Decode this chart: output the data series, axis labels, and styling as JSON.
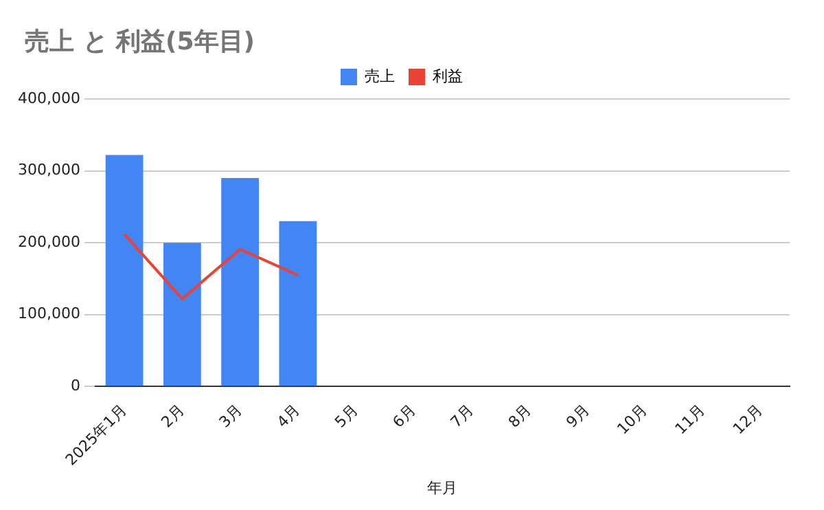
{
  "chart_data": {
    "type": "bar",
    "title": "売上 と 利益(5年目)",
    "xlabel": "年月",
    "categories": [
      "2025年1月",
      "2月",
      "3月",
      "4月",
      "5月",
      "6月",
      "7月",
      "8月",
      "9月",
      "10月",
      "11月",
      "12月"
    ],
    "series": [
      {
        "name": "売上",
        "color": "#4285f4",
        "values": [
          322000,
          200000,
          290000,
          230000,
          null,
          null,
          null,
          null,
          null,
          null,
          null,
          null
        ]
      },
      {
        "name": "利益",
        "type": "line",
        "color": "#ea4335",
        "values": [
          212000,
          122000,
          191000,
          155000,
          null,
          null,
          null,
          null,
          null,
          null,
          null,
          null
        ]
      }
    ],
    "ylim": [
      0,
      400000
    ],
    "yticks": [
      0,
      {
        "value": 100000,
        "label": "100,000"
      },
      {
        "value": 200000,
        "label": "200,000"
      },
      {
        "value": 300000,
        "label": "300,000"
      },
      {
        "value": 400000,
        "label": "400,000"
      }
    ],
    "grid": "y",
    "legend": "top",
    "marker": "none"
  }
}
